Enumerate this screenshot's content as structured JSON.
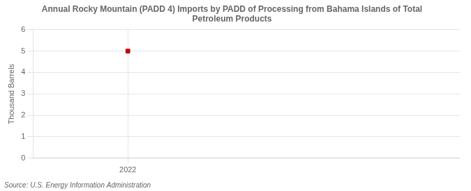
{
  "chart_data": {
    "type": "scatter",
    "title": "Annual Rocky Mountain (PADD 4) Imports by PADD of Processing from Bahama Islands of Total\nPetroleum Products",
    "ylabel": "Thousand Barrels",
    "annotations": [
      "Source: U.S. Energy Information Administration"
    ],
    "x": [
      2022
    ],
    "values": [
      5
    ],
    "color": "#cc0000",
    "marker": "square",
    "xlim": [
      2021.6,
      2023.4
    ],
    "xticks": [
      2022
    ],
    "ylim": [
      0,
      6
    ],
    "yticks": [
      0,
      1,
      2,
      3,
      4,
      5,
      6
    ],
    "grid": true
  }
}
